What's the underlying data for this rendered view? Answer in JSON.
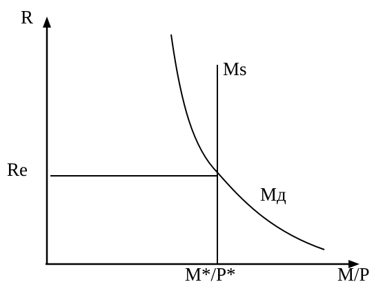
{
  "diagram": {
    "axes": {
      "y_label": "R",
      "x_label": "M/P"
    },
    "curves": {
      "supply_label": "Ms",
      "demand_label": "Mд"
    },
    "equilibrium": {
      "rate_label": "Re",
      "quantity_label": "M*/P*"
    },
    "colors": {
      "line": "#000000",
      "background": "#ffffff"
    }
  }
}
